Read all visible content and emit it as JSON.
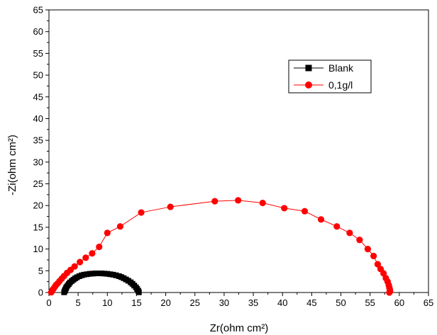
{
  "chart_data": {
    "type": "scatter",
    "xlabel": "Zr(ohm cm²)",
    "ylabel": "-Zi(ohm cm²)",
    "xlim": [
      0,
      65
    ],
    "ylim": [
      0,
      65
    ],
    "xticks": [
      0,
      5,
      10,
      15,
      20,
      25,
      30,
      35,
      40,
      45,
      50,
      55,
      60,
      65
    ],
    "yticks": [
      0,
      5,
      10,
      15,
      20,
      25,
      30,
      35,
      40,
      45,
      50,
      55,
      60,
      65
    ],
    "grid": false,
    "legend_position": "upper-right",
    "series": [
      {
        "name": "Blank",
        "color": "#000000",
        "marker": "square",
        "x": [
          2.6,
          2.7,
          2.8,
          2.9,
          3.0,
          3.2,
          3.4,
          3.6,
          3.9,
          4.2,
          4.5,
          4.8,
          5.2,
          5.6,
          6.0,
          6.5,
          7.0,
          7.5,
          8.0,
          8.5,
          9.0,
          9.5,
          10.0,
          10.5,
          11.0,
          11.5,
          12.0,
          12.4,
          12.8,
          13.2,
          13.6,
          14.0,
          14.3,
          14.6,
          14.9,
          15.1,
          15.3,
          15.4
        ],
        "y": [
          0.05,
          0.35,
          0.65,
          0.95,
          1.25,
          1.6,
          1.95,
          2.3,
          2.65,
          2.95,
          3.25,
          3.5,
          3.75,
          3.95,
          4.1,
          4.2,
          4.3,
          4.35,
          4.4,
          4.4,
          4.4,
          4.35,
          4.3,
          4.2,
          4.1,
          3.95,
          3.75,
          3.55,
          3.3,
          3.0,
          2.7,
          2.35,
          2.0,
          1.6,
          1.2,
          0.8,
          0.4,
          0.05
        ]
      },
      {
        "name": "0,1g/l",
        "color": "#ff0000",
        "marker": "circle",
        "x": [
          0.4,
          0.5,
          0.6,
          0.8,
          1.0,
          1.2,
          1.5,
          1.8,
          2.2,
          2.6,
          3.1,
          3.7,
          4.4,
          5.3,
          6.3,
          7.4,
          8.6,
          10.0,
          12.2,
          15.8,
          20.8,
          28.4,
          32.4,
          36.6,
          40.3,
          43.8,
          46.6,
          49.3,
          51.5,
          53.2,
          54.6,
          55.6,
          56.3,
          56.8,
          57.3,
          57.7,
          58.0,
          58.2,
          58.3,
          58.4,
          58.4,
          58.3
        ],
        "y": [
          0.05,
          0.3,
          0.6,
          0.9,
          1.3,
          1.7,
          2.1,
          2.6,
          3.2,
          3.8,
          4.5,
          5.2,
          6.0,
          7.0,
          8.0,
          9.0,
          10.5,
          13.7,
          15.2,
          18.4,
          19.7,
          21.0,
          21.2,
          20.6,
          19.4,
          18.7,
          16.8,
          15.2,
          13.7,
          12.1,
          10.0,
          8.4,
          6.5,
          5.4,
          4.4,
          3.3,
          2.5,
          1.7,
          1.1,
          0.6,
          0.25,
          0.0
        ]
      }
    ]
  }
}
